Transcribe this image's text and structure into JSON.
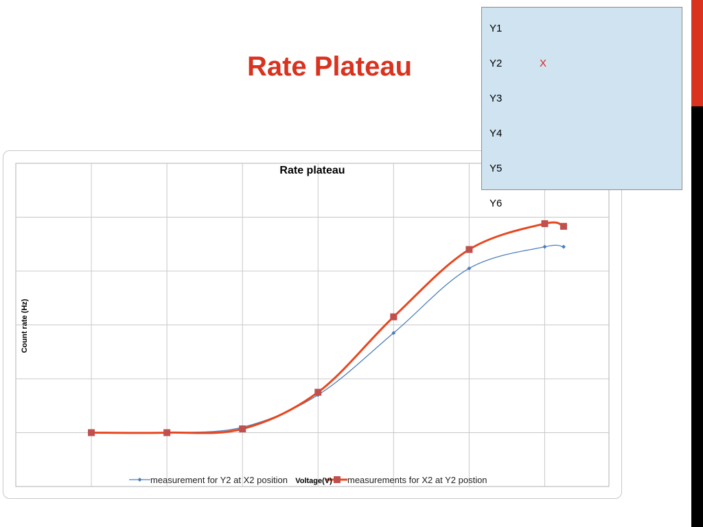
{
  "slide": {
    "title": "Rate Plateau"
  },
  "colors": {
    "accent": "#d9321f",
    "panel_bg": "#cfe3f1",
    "series_blue": "#4a7ebb",
    "series_red": "#e8461e",
    "marker_red": "#c0504d",
    "grid": "#c8c8c8"
  },
  "positions_panel": {
    "items": [
      {
        "label": "Y1",
        "mark": ""
      },
      {
        "label": "Y2",
        "mark": "X"
      },
      {
        "label": "Y3",
        "mark": ""
      },
      {
        "label": "Y4",
        "mark": ""
      },
      {
        "label": "Y5",
        "mark": ""
      },
      {
        "label": "Y6",
        "mark": ""
      }
    ],
    "mark_color": "#e02020"
  },
  "chart_data": {
    "type": "line",
    "title": "Rate plateau",
    "xlabel": "Voltage(V)",
    "ylabel": "Count rate (Hz)",
    "x": [
      1,
      2,
      3,
      4,
      5,
      6,
      7,
      7.25
    ],
    "xlim": [
      0,
      7.85
    ],
    "ylim": [
      0,
      6
    ],
    "grid": true,
    "tick_labels_shown": false,
    "legend_position": "bottom",
    "series": [
      {
        "name": "measurement for Y2 at X2 position",
        "color": "#4a7ebb",
        "marker": "diamond",
        "values": [
          1.0,
          1.0,
          1.1,
          1.7,
          2.85,
          4.05,
          4.45,
          4.45
        ]
      },
      {
        "name": "measurements for X2 at Y2 postion",
        "color": "#e8461e",
        "marker": "square",
        "values": [
          1.0,
          1.0,
          1.07,
          1.75,
          3.15,
          4.4,
          4.88,
          4.83
        ]
      }
    ]
  }
}
